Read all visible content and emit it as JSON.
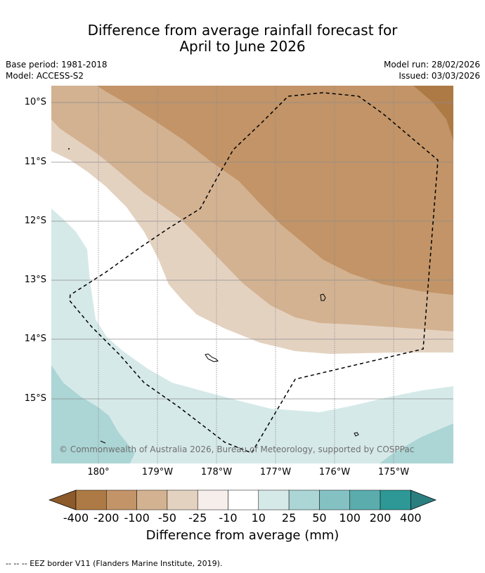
{
  "title": {
    "line1": "Difference from average rainfall forecast for",
    "line2": "April to June 2026"
  },
  "meta": {
    "base_period": "Base period: 1981-2018",
    "model": "Model: ACCESS-S2",
    "model_run": "Model run: 28/02/2026",
    "issued": "Issued: 03/03/2026"
  },
  "axes": {
    "lat_labels": [
      "10°S",
      "11°S",
      "12°S",
      "13°S",
      "14°S",
      "15°S"
    ],
    "lon_labels": [
      "180°",
      "179°W",
      "178°W",
      "177°W",
      "176°W",
      "175°W"
    ]
  },
  "copyright": "© Commonwealth of Australia 2026, Bureau of Meteorology, supported by COSPPac",
  "colorbar": {
    "labels": [
      "-400",
      "-200",
      "-100",
      "-50",
      "-25",
      "-10",
      "10",
      "25",
      "50",
      "100",
      "200",
      "400"
    ],
    "colors": [
      "#8c5a2b",
      "#ad7a45",
      "#c29467",
      "#d3b291",
      "#e4d2c1",
      "#f5eeea",
      "#ffffff",
      "#d6e9e9",
      "#acd5d5",
      "#84c1c2",
      "#5aacad",
      "#2e9896",
      "#2b7e80"
    ],
    "title": "Difference from average (mm)"
  },
  "legend_note": "--  --  -- EEZ border V11 (Flanders Marine Institute, 2019)."
}
